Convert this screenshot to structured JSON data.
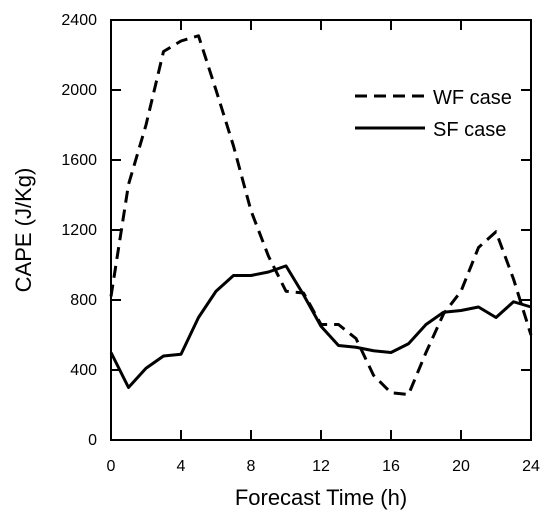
{
  "chart_data": {
    "type": "line",
    "title": "",
    "xlabel": "Forecast Time (h)",
    "ylabel": "CAPE (J/Kg)",
    "xlim": [
      0,
      24
    ],
    "ylim": [
      0,
      2400
    ],
    "xticks": [
      0,
      4,
      8,
      12,
      16,
      20,
      24
    ],
    "yticks": [
      0,
      400,
      800,
      1200,
      1600,
      2000,
      2400
    ],
    "xtick_labels": [
      "0",
      "4",
      "8",
      "12",
      "16",
      "20",
      "24"
    ],
    "ytick_labels": [
      "0",
      "400",
      "800",
      "1200",
      "1600",
      "2000",
      "2400"
    ],
    "grid": false,
    "legend_position": "top-right",
    "series": [
      {
        "name": "WF case",
        "line_style": "dashed",
        "color": "#000000",
        "x": [
          0,
          1,
          2,
          3,
          4,
          5,
          6,
          7,
          8,
          9,
          10,
          11,
          12,
          13,
          14,
          15,
          16,
          17,
          18,
          19,
          20,
          21,
          22,
          23,
          24
        ],
        "y": [
          820,
          1460,
          1800,
          2220,
          2280,
          2310,
          2000,
          1680,
          1310,
          1050,
          850,
          840,
          660,
          660,
          580,
          370,
          270,
          260,
          500,
          720,
          850,
          1100,
          1190,
          920,
          600
        ]
      },
      {
        "name": "SF case",
        "line_style": "solid",
        "color": "#000000",
        "x": [
          0,
          1,
          2,
          3,
          4,
          5,
          6,
          7,
          8,
          9,
          10,
          11,
          12,
          13,
          14,
          15,
          16,
          17,
          18,
          19,
          20,
          21,
          22,
          23,
          24
        ],
        "y": [
          500,
          300,
          410,
          480,
          490,
          700,
          850,
          940,
          940,
          960,
          995,
          830,
          650,
          540,
          530,
          510,
          500,
          550,
          660,
          730,
          740,
          760,
          700,
          790,
          760
        ]
      }
    ]
  }
}
